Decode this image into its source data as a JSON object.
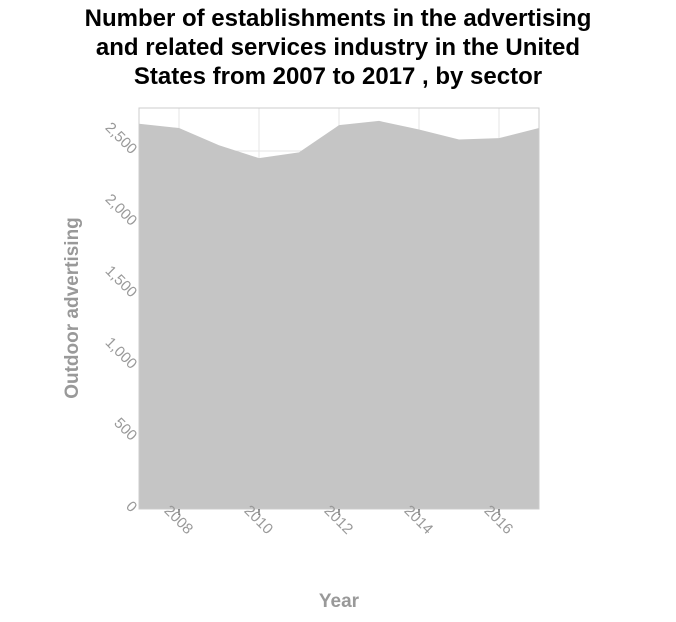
{
  "chart_data": {
    "type": "area",
    "title": "Number of establishments in the advertising and related services industry in the United States from 2007 to 2017 , by sector",
    "title_lines": [
      "Number of establishments in the advertising",
      "and related services industry in the United",
      "States from 2007 to 2017 , by sector"
    ],
    "xlabel": "Year",
    "ylabel": "Outdoor advertising",
    "x": [
      2007,
      2008,
      2009,
      2010,
      2011,
      2012,
      2013,
      2014,
      2015,
      2016,
      2017
    ],
    "values": [
      2690,
      2660,
      2540,
      2450,
      2490,
      2680,
      2710,
      2650,
      2580,
      2590,
      2660
    ],
    "xlim": [
      2007,
      2017
    ],
    "ylim": [
      0,
      2800
    ],
    "x_ticks": [
      2008,
      2010,
      2012,
      2014,
      2016
    ],
    "x_tick_labels": [
      "2008",
      "2010",
      "2012",
      "2014",
      "2016"
    ],
    "y_ticks": [
      0,
      500,
      1000,
      1500,
      2000,
      2500
    ],
    "y_tick_labels": [
      "0",
      "500",
      "1,000",
      "1,500",
      "2,000",
      "2,500"
    ],
    "grid": true,
    "colors": {
      "fill": "#c5c5c5",
      "grid": "#e6e6e6",
      "axis": "#cccccc",
      "text": "#999999"
    }
  }
}
